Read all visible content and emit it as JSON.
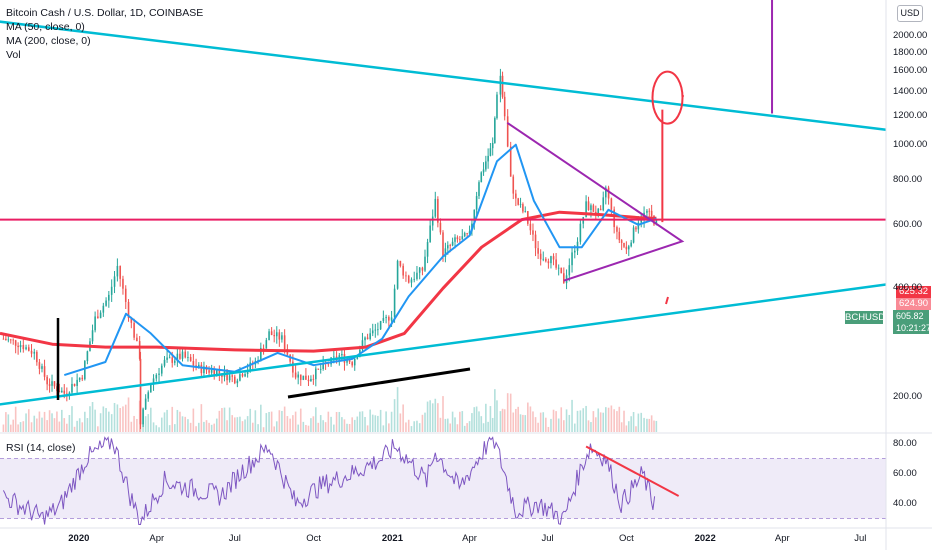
{
  "legend": {
    "title": "Bitcoin Cash / U.S. Dollar, 1D, COINBASE",
    "ma50": "MA (50, close, 0)",
    "ma200": "MA (200, close, 0)",
    "vol": "Vol"
  },
  "currency_badge": "USD",
  "symbol_tag": "BCHUSD",
  "last_price": "605.82",
  "countdown": "10:21:27",
  "ma200_tag": "625.32",
  "ma50_tag": "624.90",
  "rsi_label": "RSI (14, close)",
  "colors": {
    "up": "#26a69a",
    "down": "#ef5350",
    "ma50": "#2196f3",
    "ma200": "#f23645",
    "trend": "#00bcd4",
    "triangle": "#9c27b0",
    "marker": "#f23645",
    "last": "#4a9e7a",
    "rsi": "#7e57c2"
  },
  "chart_data": [
    {
      "type": "candlestick",
      "title": "Bitcoin Cash / U.S. Dollar, 1D, COINBASE",
      "y_scale": "log",
      "y_ticks": [
        200,
        400,
        600,
        800,
        1000,
        1200,
        1400,
        1600,
        1800,
        2000
      ],
      "y_tick_labels": [
        "200.00",
        "400.00",
        "600.00",
        "800.00",
        "1000.00",
        "1200.00",
        "1400.00",
        "1600.00",
        "1800.00",
        "2000.00"
      ],
      "x_ticks": [
        "2020",
        "Apr",
        "Jul",
        "Oct",
        "2021",
        "Apr",
        "Jul",
        "Oct",
        "2022",
        "Apr",
        "Jul"
      ],
      "x_tick_dates": [
        "2020-01-01",
        "2020-04-01",
        "2020-07-01",
        "2020-10-01",
        "2021-01-01",
        "2021-04-01",
        "2021-07-01",
        "2021-10-01",
        "2022-01-01",
        "2022-04-01",
        "2022-07-01"
      ],
      "x_range": [
        "2019-10-01",
        "2022-07-31"
      ],
      "close_path": [
        [
          "2019-10-05",
          290
        ],
        [
          "2019-10-25",
          280
        ],
        [
          "2019-11-10",
          265
        ],
        [
          "2019-11-25",
          220
        ],
        [
          "2019-12-15",
          205
        ],
        [
          "2020-01-05",
          230
        ],
        [
          "2020-01-20",
          330
        ],
        [
          "2020-02-05",
          380
        ],
        [
          "2020-02-15",
          460
        ],
        [
          "2020-02-28",
          340
        ],
        [
          "2020-03-12",
          260
        ],
        [
          "2020-03-13",
          170
        ],
        [
          "2020-03-25",
          220
        ],
        [
          "2020-04-10",
          250
        ],
        [
          "2020-05-01",
          260
        ],
        [
          "2020-05-20",
          240
        ],
        [
          "2020-06-10",
          235
        ],
        [
          "2020-07-01",
          225
        ],
        [
          "2020-07-25",
          250
        ],
        [
          "2020-08-10",
          300
        ],
        [
          "2020-08-25",
          290
        ],
        [
          "2020-09-10",
          230
        ],
        [
          "2020-09-25",
          225
        ],
        [
          "2020-10-15",
          245
        ],
        [
          "2020-10-31",
          260
        ],
        [
          "2020-11-15",
          250
        ],
        [
          "2020-11-30",
          290
        ],
        [
          "2020-12-15",
          310
        ],
        [
          "2020-12-31",
          340
        ],
        [
          "2021-01-07",
          470
        ],
        [
          "2021-01-20",
          420
        ],
        [
          "2021-02-05",
          450
        ],
        [
          "2021-02-20",
          700
        ],
        [
          "2021-03-01",
          500
        ],
        [
          "2021-03-15",
          540
        ],
        [
          "2021-04-01",
          560
        ],
        [
          "2021-04-12",
          800
        ],
        [
          "2021-04-20",
          900
        ],
        [
          "2021-04-28",
          1000
        ],
        [
          "2021-05-03",
          1400
        ],
        [
          "2021-05-07",
          1550
        ],
        [
          "2021-05-12",
          1200
        ],
        [
          "2021-05-19",
          800
        ],
        [
          "2021-05-25",
          700
        ],
        [
          "2021-06-05",
          640
        ],
        [
          "2021-06-20",
          500
        ],
        [
          "2021-07-05",
          480
        ],
        [
          "2021-07-20",
          420
        ],
        [
          "2021-08-05",
          550
        ],
        [
          "2021-08-15",
          680
        ],
        [
          "2021-09-01",
          640
        ],
        [
          "2021-09-07",
          760
        ],
        [
          "2021-09-20",
          560
        ],
        [
          "2021-10-01",
          510
        ],
        [
          "2021-10-15",
          620
        ],
        [
          "2021-10-25",
          650
        ],
        [
          "2021-11-05",
          605.82
        ]
      ],
      "series": [
        {
          "name": "MA (50, close, 0)",
          "points": [
            [
              "2019-12-15",
              230
            ],
            [
              "2020-02-01",
              250
            ],
            [
              "2020-02-25",
              340
            ],
            [
              "2020-03-25",
              300
            ],
            [
              "2020-05-01",
              245
            ],
            [
              "2020-07-01",
              235
            ],
            [
              "2020-08-20",
              265
            ],
            [
              "2020-10-01",
              245
            ],
            [
              "2020-11-15",
              255
            ],
            [
              "2020-12-20",
              290
            ],
            [
              "2021-01-20",
              380
            ],
            [
              "2021-03-01",
              490
            ],
            [
              "2021-04-01",
              560
            ],
            [
              "2021-05-03",
              900
            ],
            [
              "2021-05-25",
              1000
            ],
            [
              "2021-06-15",
              700
            ],
            [
              "2021-07-15",
              520
            ],
            [
              "2021-08-10",
              520
            ],
            [
              "2021-09-10",
              660
            ],
            [
              "2021-10-15",
              600
            ],
            [
              "2021-11-05",
              624.9
            ]
          ]
        },
        {
          "name": "MA (200, close, 0)",
          "points": [
            [
              "2019-10-01",
              300
            ],
            [
              "2019-12-01",
              280
            ],
            [
              "2020-02-01",
              275
            ],
            [
              "2020-04-01",
              275
            ],
            [
              "2020-07-01",
              270
            ],
            [
              "2020-10-01",
              268
            ],
            [
              "2020-12-01",
              275
            ],
            [
              "2021-01-15",
              300
            ],
            [
              "2021-03-01",
              400
            ],
            [
              "2021-04-15",
              520
            ],
            [
              "2021-06-01",
              620
            ],
            [
              "2021-07-15",
              650
            ],
            [
              "2021-09-01",
              640
            ],
            [
              "2021-10-15",
              628
            ],
            [
              "2021-11-05",
              625.32
            ]
          ]
        }
      ],
      "drawings": [
        {
          "kind": "trendline",
          "name": "descending resistance",
          "from": [
            "2019-09-25",
            2200
          ],
          "to": [
            "2022-07-31",
            1100
          ]
        },
        {
          "kind": "trendline",
          "name": "ascending support",
          "from": [
            "2019-09-25",
            190
          ],
          "to": [
            "2022-07-31",
            410
          ]
        },
        {
          "kind": "horizontal",
          "name": "horizontal level",
          "value": 620
        },
        {
          "kind": "triangle",
          "name": "symmetrical triangle",
          "points": [
            [
              "2021-05-15",
              1150
            ],
            [
              "2021-12-05",
              540
            ],
            [
              "2021-07-20",
              420
            ]
          ]
        },
        {
          "kind": "arrow",
          "name": "target arrow",
          "from": [
            "2021-11-12",
            610
          ],
          "to": [
            "2021-11-12",
            1250
          ]
        },
        {
          "kind": "circle",
          "name": "target circle",
          "center": [
            "2021-11-18",
            1350
          ]
        },
        {
          "kind": "vertical",
          "name": "vertical line",
          "x": "2022-03-20"
        }
      ]
    },
    {
      "type": "line",
      "title": "RSI (14, close)",
      "ylim": [
        25,
        85
      ],
      "y_ticks": [
        40,
        60,
        80
      ],
      "y_tick_labels": [
        "40.00",
        "60.00",
        "80.00"
      ],
      "band": [
        30,
        70
      ],
      "values_path": [
        [
          "2019-10-05",
          45
        ],
        [
          "2019-10-20",
          40
        ],
        [
          "2019-11-05",
          35
        ],
        [
          "2019-11-20",
          30
        ],
        [
          "2019-12-10",
          38
        ],
        [
          "2020-01-10",
          70
        ],
        [
          "2020-02-10",
          82
        ],
        [
          "2020-03-01",
          45
        ],
        [
          "2020-03-13",
          28
        ],
        [
          "2020-04-10",
          55
        ],
        [
          "2020-05-10",
          50
        ],
        [
          "2020-06-15",
          45
        ],
        [
          "2020-07-10",
          62
        ],
        [
          "2020-08-10",
          78
        ],
        [
          "2020-09-10",
          40
        ],
        [
          "2020-10-10",
          52
        ],
        [
          "2020-11-15",
          60
        ],
        [
          "2020-12-20",
          70
        ],
        [
          "2021-01-05",
          78
        ],
        [
          "2021-02-10",
          55
        ],
        [
          "2021-02-20",
          75
        ],
        [
          "2021-03-20",
          50
        ],
        [
          "2021-04-28",
          85
        ],
        [
          "2021-05-12",
          60
        ],
        [
          "2021-05-25",
          35
        ],
        [
          "2021-06-20",
          40
        ],
        [
          "2021-07-20",
          30
        ],
        [
          "2021-08-10",
          65
        ],
        [
          "2021-08-20",
          78
        ],
        [
          "2021-09-07",
          70
        ],
        [
          "2021-09-25",
          40
        ],
        [
          "2021-10-15",
          55
        ],
        [
          "2021-10-20",
          60
        ],
        [
          "2021-11-01",
          40
        ],
        [
          "2021-11-05",
          52
        ]
      ],
      "drawings": [
        {
          "kind": "trendline",
          "name": "rsi falling trendline",
          "from": [
            "2021-08-15",
            78
          ],
          "to": [
            "2021-12-01",
            45
          ]
        }
      ]
    }
  ]
}
